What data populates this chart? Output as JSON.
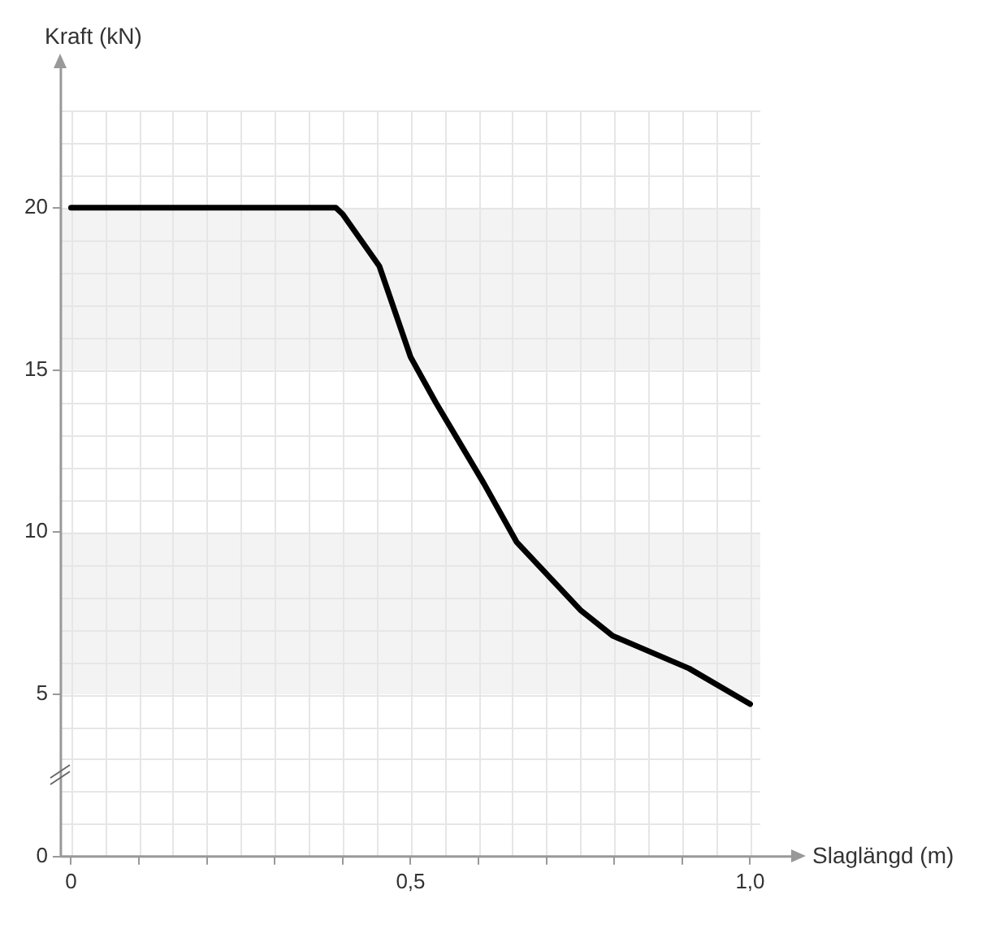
{
  "chart_data": {
    "type": "line",
    "xlabel": "Slaglängd (m)",
    "ylabel": "Kraft (kN)",
    "series": [
      {
        "color": "#000000",
        "x": [
          0,
          0.2,
          0.39,
          0.4,
          0.454,
          0.5,
          0.537,
          0.608,
          0.656,
          0.75,
          0.798,
          0.91,
          1.0
        ],
        "values": [
          20,
          20,
          20,
          19.8,
          18.2,
          15.4,
          14.0,
          11.5,
          9.7,
          7.6,
          6.8,
          5.8,
          4.7
        ]
      }
    ],
    "xlim": [
      -0.015,
      1.015
    ],
    "xticks": [
      {
        "value": 0,
        "label": "0"
      },
      {
        "value": 0.1,
        "label": null
      },
      {
        "value": 0.2,
        "label": null
      },
      {
        "value": 0.3,
        "label": null
      },
      {
        "value": 0.4,
        "label": null
      },
      {
        "value": 0.5,
        "label": "0,5"
      },
      {
        "value": 0.6,
        "label": null
      },
      {
        "value": 0.7,
        "label": null
      },
      {
        "value": 0.8,
        "label": null
      },
      {
        "value": 0.9,
        "label": null
      },
      {
        "value": 1.0,
        "label": "1,0"
      }
    ],
    "ylim": [
      0,
      23
    ],
    "yticks": [
      0,
      5,
      10,
      15,
      20
    ],
    "bands": [
      {
        "axis": "y",
        "from": 5,
        "to": 10,
        "color": "#f3f3f3"
      },
      {
        "axis": "y",
        "from": 15,
        "to": 20,
        "color": "#f3f3f3"
      }
    ],
    "grid": true,
    "legend": false,
    "marker": "none",
    "line_style": "solid"
  }
}
